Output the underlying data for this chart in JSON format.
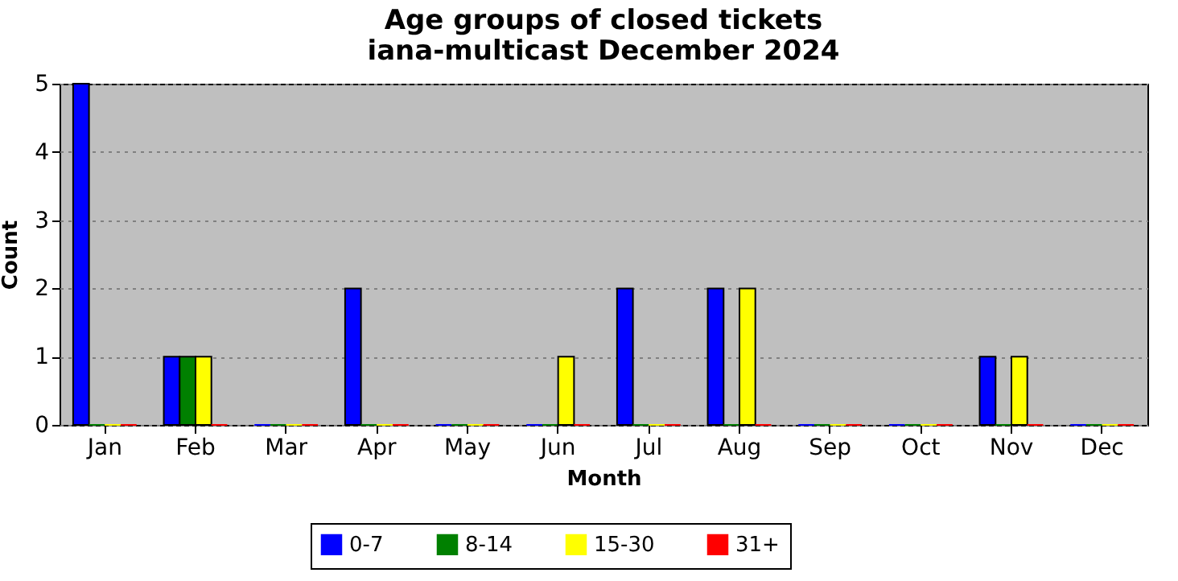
{
  "chart_data": {
    "type": "bar",
    "title": "Age groups of closed tickets",
    "subtitle": "iana-multicast December 2024",
    "xlabel": "Month",
    "ylabel": "Count",
    "categories": [
      "Jan",
      "Feb",
      "Mar",
      "Apr",
      "May",
      "Jun",
      "Jul",
      "Aug",
      "Sep",
      "Oct",
      "Nov",
      "Dec"
    ],
    "series": [
      {
        "name": "0-7",
        "color": "#0000ff",
        "values": [
          5,
          1,
          0,
          2,
          0,
          0,
          2,
          2,
          0,
          0,
          1,
          0
        ]
      },
      {
        "name": "8-14",
        "color": "#008000",
        "values": [
          0,
          1,
          0,
          0,
          0,
          0,
          0,
          0,
          0,
          0,
          0,
          0
        ]
      },
      {
        "name": "15-30",
        "color": "#ffff00",
        "values": [
          0,
          1,
          0,
          0,
          0,
          1,
          0,
          2,
          0,
          0,
          1,
          0
        ]
      },
      {
        "name": "31+",
        "color": "#ff0000",
        "values": [
          0,
          0,
          0,
          0,
          0,
          0,
          0,
          0,
          0,
          0,
          0,
          0
        ]
      }
    ],
    "ylim": [
      0,
      5
    ],
    "yticks": [
      0,
      1,
      2,
      3,
      4,
      5
    ],
    "grid": "y",
    "legend": "bottom"
  }
}
